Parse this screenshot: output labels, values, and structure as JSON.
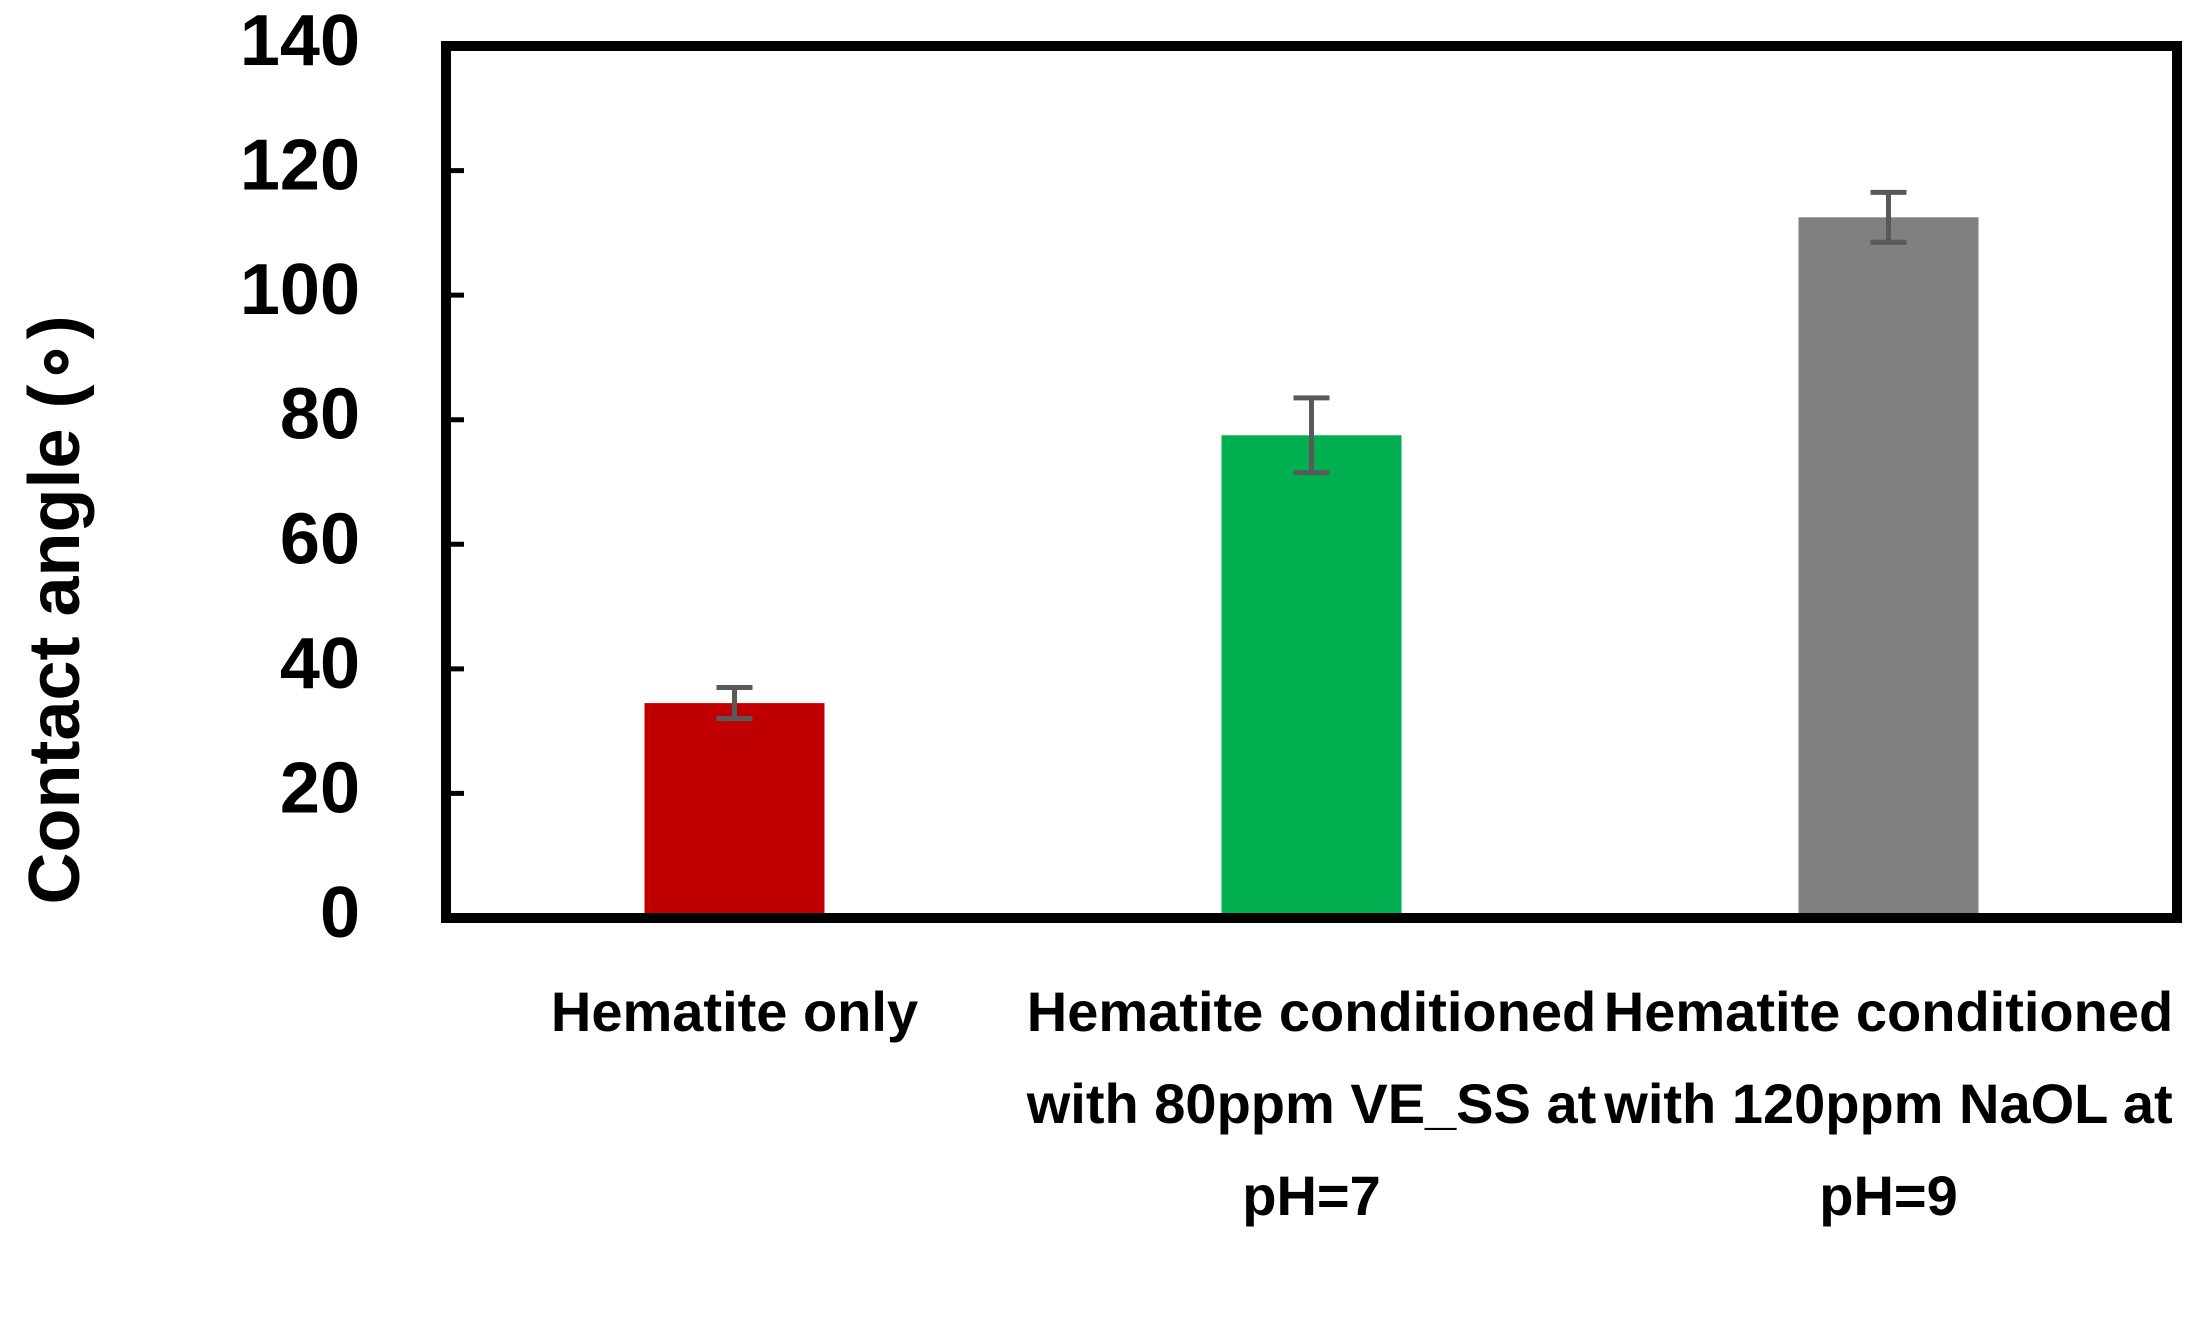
{
  "chart_data": {
    "type": "bar",
    "y_label": "Contact angle (∘)",
    "categories": [
      "Hematite only",
      "Hematite conditioned with 80ppm VE_SS at pH=7",
      "Hematite conditioned with 120ppm NaOL at pH=9"
    ],
    "values": [
      34.5,
      77.5,
      112.5
    ],
    "errors": [
      2.5,
      6,
      4
    ],
    "colors": [
      "#c00000",
      "#00b050",
      "#808080"
    ],
    "ylim": [
      0,
      140
    ],
    "yticks": [
      0,
      20,
      40,
      60,
      80,
      100,
      120,
      140
    ],
    "grid": false
  }
}
